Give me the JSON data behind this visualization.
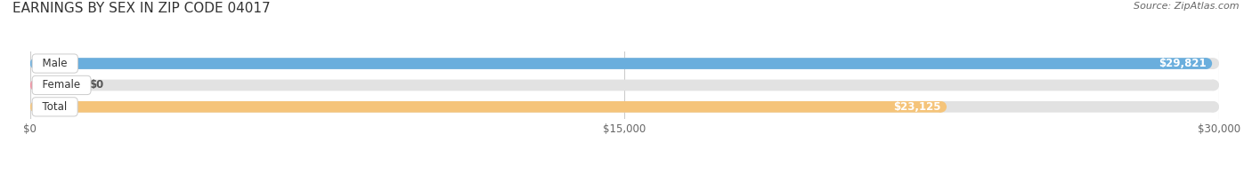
{
  "title": "EARNINGS BY SEX IN ZIP CODE 04017",
  "source": "Source: ZipAtlas.com",
  "categories": [
    "Male",
    "Female",
    "Total"
  ],
  "values": [
    29821,
    0,
    23125
  ],
  "max_value": 30000,
  "bar_colors": [
    "#6aaedd",
    "#f08fa0",
    "#f5c47a"
  ],
  "bar_labels": [
    "$29,821",
    "$0",
    "$23,125"
  ],
  "label_inside": [
    true,
    false,
    true
  ],
  "x_ticks": [
    0,
    15000,
    30000
  ],
  "x_tick_labels": [
    "$0",
    "$15,000",
    "$30,000"
  ],
  "bg_color": "#ffffff",
  "bar_bg_color": "#e2e2e2",
  "title_fontsize": 11,
  "source_fontsize": 8,
  "label_fontsize": 8.5,
  "tick_fontsize": 8.5,
  "cat_fontsize": 8.5
}
